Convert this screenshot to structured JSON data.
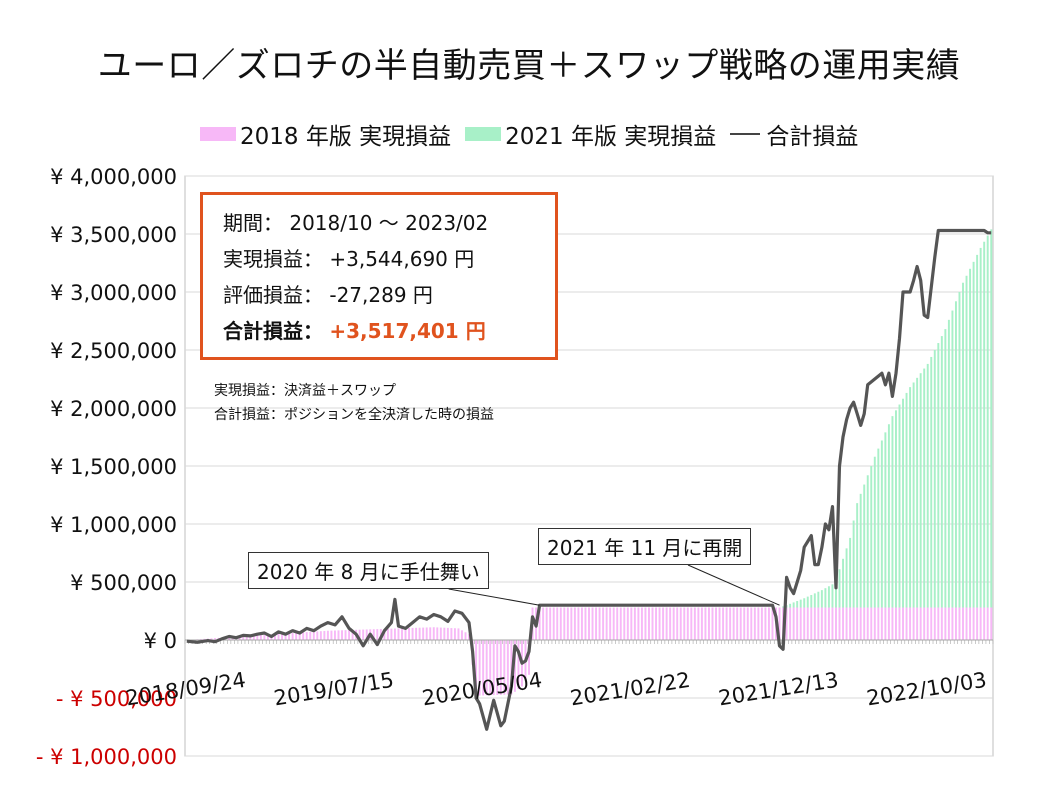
{
  "chart_data": {
    "type": "area",
    "title": "ユーロ／ズロチの半自動売買＋スワップ戦略の運用実績",
    "ylim": [
      -1000000,
      4000000
    ],
    "ytick_values": [
      4000000,
      3500000,
      3000000,
      2500000,
      2000000,
      1500000,
      1000000,
      500000,
      0,
      -500000,
      -1000000
    ],
    "ytick_labels": [
      "¥ 4,000,000",
      "¥ 3,500,000",
      "¥ 3,000,000",
      "¥ 2,500,000",
      "¥ 2,000,000",
      "¥ 1,500,000",
      "¥ 1,000,000",
      "¥ 500,000",
      "¥ 0",
      "- ¥ 500,000",
      "- ¥ 1,000,000"
    ],
    "x_ticks": [
      {
        "index": 0,
        "label": "2018/09/24"
      },
      {
        "index": 42,
        "label": "2019/07/15"
      },
      {
        "index": 84,
        "label": "2020/05/04"
      },
      {
        "index": 126,
        "label": "2021/02/22"
      },
      {
        "index": 168,
        "label": "2021/12/13"
      },
      {
        "index": 210,
        "label": "2022/10/03"
      }
    ],
    "x_count": 229,
    "series": [
      {
        "name": "2018 年版 実現損益",
        "type": "bar",
        "color": "#f7b8f7",
        "points": [
          [
            0,
            0
          ],
          [
            10,
            20000
          ],
          [
            20,
            40000
          ],
          [
            30,
            60000
          ],
          [
            40,
            80000
          ],
          [
            50,
            90000
          ],
          [
            60,
            100000
          ],
          [
            70,
            110000
          ],
          [
            77,
            100000
          ],
          [
            80,
            50000
          ],
          [
            82,
            -480000
          ],
          [
            92,
            -470000
          ],
          [
            95,
            -400000
          ],
          [
            97,
            -300000
          ],
          [
            98,
            280000
          ],
          [
            228,
            280000
          ]
        ]
      },
      {
        "name": "2021 年版 実現損益",
        "type": "bar",
        "color": "#a8f0c8",
        "points": [
          [
            0,
            0
          ],
          [
            168,
            0
          ],
          [
            170,
            20000
          ],
          [
            175,
            80000
          ],
          [
            180,
            150000
          ],
          [
            183,
            200000
          ],
          [
            185,
            330000
          ],
          [
            188,
            600000
          ],
          [
            190,
            900000
          ],
          [
            195,
            1300000
          ],
          [
            200,
            1650000
          ],
          [
            205,
            1900000
          ],
          [
            210,
            2100000
          ],
          [
            215,
            2400000
          ],
          [
            220,
            2800000
          ],
          [
            225,
            3100000
          ],
          [
            228,
            3260000
          ]
        ]
      },
      {
        "name": "合計損益",
        "type": "line",
        "color": "#555555",
        "points": [
          [
            0,
            -10000
          ],
          [
            3,
            -20000
          ],
          [
            6,
            -5000
          ],
          [
            8,
            -15000
          ],
          [
            10,
            10000
          ],
          [
            12,
            30000
          ],
          [
            14,
            20000
          ],
          [
            16,
            40000
          ],
          [
            18,
            35000
          ],
          [
            20,
            50000
          ],
          [
            22,
            60000
          ],
          [
            24,
            30000
          ],
          [
            26,
            70000
          ],
          [
            28,
            50000
          ],
          [
            30,
            80000
          ],
          [
            32,
            60000
          ],
          [
            34,
            100000
          ],
          [
            36,
            80000
          ],
          [
            38,
            120000
          ],
          [
            40,
            150000
          ],
          [
            42,
            130000
          ],
          [
            44,
            200000
          ],
          [
            46,
            100000
          ],
          [
            48,
            50000
          ],
          [
            50,
            -50000
          ],
          [
            52,
            50000
          ],
          [
            54,
            -40000
          ],
          [
            56,
            80000
          ],
          [
            58,
            150000
          ],
          [
            59,
            350000
          ],
          [
            60,
            120000
          ],
          [
            62,
            100000
          ],
          [
            64,
            150000
          ],
          [
            66,
            200000
          ],
          [
            68,
            180000
          ],
          [
            70,
            220000
          ],
          [
            72,
            200000
          ],
          [
            74,
            160000
          ],
          [
            76,
            250000
          ],
          [
            78,
            230000
          ],
          [
            80,
            150000
          ],
          [
            81,
            -100000
          ],
          [
            82,
            -500000
          ],
          [
            83,
            -550000
          ],
          [
            85,
            -770000
          ],
          [
            87,
            -520000
          ],
          [
            89,
            -740000
          ],
          [
            90,
            -700000
          ],
          [
            92,
            -400000
          ],
          [
            93,
            -50000
          ],
          [
            94,
            -100000
          ],
          [
            95,
            -200000
          ],
          [
            96,
            -180000
          ],
          [
            97,
            -100000
          ],
          [
            98,
            200000
          ],
          [
            99,
            120000
          ],
          [
            100,
            300000
          ],
          [
            145,
            300000
          ],
          [
            166,
            300000
          ],
          [
            167,
            200000
          ],
          [
            168,
            -50000
          ],
          [
            169,
            -80000
          ],
          [
            170,
            540000
          ],
          [
            171,
            450000
          ],
          [
            172,
            400000
          ],
          [
            173,
            500000
          ],
          [
            174,
            600000
          ],
          [
            175,
            800000
          ],
          [
            176,
            850000
          ],
          [
            177,
            900000
          ],
          [
            178,
            650000
          ],
          [
            179,
            650000
          ],
          [
            180,
            800000
          ],
          [
            181,
            1000000
          ],
          [
            182,
            950000
          ],
          [
            183,
            1150000
          ],
          [
            184,
            450000
          ],
          [
            185,
            1500000
          ],
          [
            186,
            1750000
          ],
          [
            187,
            1900000
          ],
          [
            188,
            2000000
          ],
          [
            189,
            2050000
          ],
          [
            190,
            1950000
          ],
          [
            191,
            1850000
          ],
          [
            192,
            1950000
          ],
          [
            193,
            2200000
          ],
          [
            195,
            2250000
          ],
          [
            197,
            2300000
          ],
          [
            198,
            2200000
          ],
          [
            199,
            2300000
          ],
          [
            200,
            2100000
          ],
          [
            201,
            2300000
          ],
          [
            202,
            2600000
          ],
          [
            203,
            3000000
          ],
          [
            205,
            3000000
          ],
          [
            206,
            3100000
          ],
          [
            207,
            3220000
          ],
          [
            208,
            3100000
          ],
          [
            209,
            2800000
          ],
          [
            210,
            2780000
          ],
          [
            212,
            3300000
          ],
          [
            213,
            3530000
          ],
          [
            226,
            3530000
          ],
          [
            227,
            3510000
          ],
          [
            228,
            3510000
          ]
        ]
      }
    ],
    "annotations": [
      {
        "text": "2020 年 8 月に手仕舞い",
        "target_index": 100,
        "target_value": 300000
      },
      {
        "text": "2021 年 11 月に再開",
        "target_index": 168,
        "target_value": 300000
      }
    ]
  },
  "legend": {
    "items": [
      {
        "label": "2018 年版 実現損益",
        "color": "#f7b8f7"
      },
      {
        "label": "2021 年版 実現損益",
        "color": "#a8f0c8"
      },
      {
        "label": "合計損益",
        "color": "#444444"
      }
    ]
  },
  "info": {
    "period": "期間： 2018/10 ～ 2023/02",
    "realized": "実現損益： +3,544,690 円",
    "unrealized": "評価損益： -27,289 円",
    "total_label": "合計損益：",
    "total_value": "+3,517,401 円"
  },
  "notes": {
    "line1": "実現損益：決済益＋スワップ",
    "line2": "合計損益：ポジションを全決済した時の損益"
  },
  "colors": {
    "accent": "#e0531e",
    "negative": "#cc0000",
    "grid": "#d9d9d9"
  }
}
